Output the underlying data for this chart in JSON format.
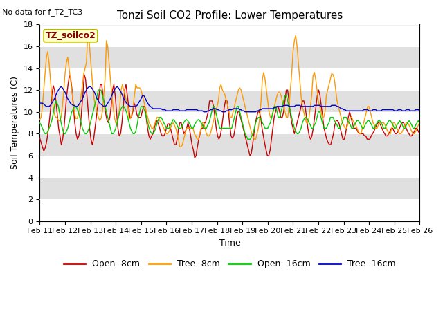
{
  "title": "Tonzi Soil CO2 Profile: Lower Temperatures",
  "top_left_note": "No data for f_T2_TC3",
  "box_label": "TZ_soilco2",
  "xlabel": "Time",
  "ylabel": "Soil Temperatures (C)",
  "ylim": [
    0,
    18
  ],
  "yticks": [
    0,
    2,
    4,
    6,
    8,
    10,
    12,
    14,
    16,
    18
  ],
  "n_days": 15,
  "date_labels": [
    "Feb 11",
    "Feb 12",
    "Feb 13",
    "Feb 14",
    "Feb 15",
    "Feb 16",
    "Feb 17",
    "Feb 18",
    "Feb 19",
    "Feb 20",
    "Feb 21",
    "Feb 22",
    "Feb 23",
    "Feb 24",
    "Feb 25",
    "Feb 26"
  ],
  "colors": {
    "open_8cm": "#cc0000",
    "tree_8cm": "#ff9900",
    "open_16cm": "#00cc00",
    "tree_16cm": "#0000cc"
  },
  "legend": [
    "Open -8cm",
    "Tree -8cm",
    "Open -16cm",
    "Tree -16cm"
  ],
  "band_colors": [
    "#ffffff",
    "#e0e0e0"
  ],
  "figsize": [
    6.4,
    4.8
  ],
  "dpi": 100,
  "open_8cm": [
    7.6,
    7.2,
    6.8,
    6.4,
    6.7,
    7.2,
    8.0,
    9.0,
    10.2,
    11.5,
    12.4,
    12.0,
    11.0,
    9.8,
    8.5,
    7.8,
    7.0,
    7.5,
    8.5,
    10.0,
    11.5,
    12.5,
    13.3,
    13.0,
    12.0,
    10.5,
    9.0,
    8.0,
    7.5,
    7.8,
    8.5,
    10.0,
    11.5,
    13.4,
    13.0,
    11.5,
    10.0,
    8.5,
    7.5,
    7.0,
    7.5,
    8.5,
    9.5,
    10.5,
    11.5,
    12.5,
    12.5,
    11.5,
    10.6,
    9.8,
    9.2,
    9.0,
    9.5,
    10.5,
    12.0,
    12.5,
    11.5,
    10.0,
    8.5,
    7.8,
    8.0,
    9.0,
    10.5,
    12.0,
    12.5,
    11.5,
    10.5,
    9.5,
    9.5,
    10.0,
    10.8,
    10.5,
    9.8,
    9.5,
    9.5,
    9.5,
    10.0,
    10.5,
    10.5,
    9.5,
    8.5,
    7.8,
    7.5,
    7.8,
    8.0,
    8.5,
    9.0,
    9.2,
    8.9,
    8.5,
    8.0,
    7.8,
    7.8,
    8.0,
    8.5,
    8.9,
    8.9,
    8.5,
    8.0,
    7.5,
    7.0,
    7.0,
    7.5,
    8.5,
    9.0,
    9.0,
    8.5,
    8.0,
    8.2,
    8.5,
    9.0,
    8.5,
    7.8,
    7.0,
    6.5,
    5.8,
    6.0,
    6.8,
    7.5,
    8.0,
    8.5,
    8.5,
    9.0,
    9.0,
    9.5,
    10.0,
    11.0,
    11.0,
    11.0,
    10.5,
    9.5,
    8.5,
    7.8,
    7.5,
    7.8,
    8.5,
    9.5,
    10.5,
    11.1,
    11.0,
    10.0,
    8.8,
    7.8,
    7.6,
    7.8,
    8.5,
    9.5,
    10.0,
    10.0,
    9.5,
    9.0,
    8.5,
    8.0,
    7.5,
    7.0,
    6.5,
    6.0,
    6.2,
    7.0,
    8.0,
    9.0,
    9.5,
    10.0,
    10.0,
    9.5,
    8.5,
    7.8,
    7.1,
    6.5,
    6.0,
    6.0,
    6.5,
    7.5,
    8.5,
    9.5,
    10.0,
    10.5,
    10.5,
    10.0,
    9.5,
    9.5,
    10.0,
    11.0,
    12.0,
    12.0,
    11.0,
    9.8,
    9.0,
    8.5,
    8.0,
    8.5,
    9.0,
    9.5,
    10.0,
    10.5,
    11.0,
    11.0,
    10.5,
    9.5,
    8.5,
    7.8,
    7.5,
    7.8,
    8.5,
    9.5,
    10.5,
    11.5,
    12.0,
    11.5,
    10.5,
    9.5,
    8.5,
    8.0,
    7.5,
    7.2,
    7.0,
    7.0,
    7.5,
    8.0,
    8.8,
    9.2,
    9.2,
    9.0,
    8.5,
    8.0,
    7.5,
    7.5,
    8.0,
    8.8,
    9.5,
    10.0,
    9.5,
    9.0,
    8.5,
    8.5,
    8.5,
    8.2,
    8.0,
    8.0,
    8.0,
    8.0,
    7.8,
    7.8,
    7.5,
    7.5,
    7.5,
    7.8,
    8.0,
    8.2,
    8.5,
    8.8,
    9.0,
    9.0,
    8.8,
    8.5,
    8.2,
    8.0,
    7.8,
    7.8,
    8.0,
    8.2,
    8.5,
    8.5,
    8.2,
    8.0,
    8.0,
    8.2,
    8.5,
    8.8,
    9.0,
    9.0,
    8.8,
    8.5,
    8.2,
    8.0,
    7.8,
    7.8,
    8.0,
    8.2,
    8.5,
    8.5,
    8.2,
    8.0
  ],
  "tree_8cm": [
    9.3,
    9.5,
    10.5,
    12.0,
    13.5,
    15.0,
    15.5,
    14.5,
    13.0,
    11.5,
    10.5,
    9.8,
    9.5,
    9.5,
    9.2,
    9.2,
    9.5,
    10.5,
    12.0,
    13.5,
    14.5,
    15.0,
    14.0,
    13.0,
    12.0,
    11.0,
    10.0,
    9.4,
    9.4,
    9.8,
    10.5,
    11.5,
    12.5,
    13.5,
    14.0,
    14.5,
    17.0,
    16.5,
    15.0,
    13.5,
    12.0,
    11.0,
    10.5,
    10.0,
    9.5,
    9.2,
    9.4,
    10.0,
    11.5,
    13.0,
    16.5,
    16.0,
    14.5,
    13.0,
    11.5,
    10.5,
    9.5,
    9.0,
    9.0,
    9.5,
    10.5,
    12.0,
    12.5,
    12.0,
    11.5,
    11.0,
    10.5,
    9.4,
    9.4,
    9.8,
    10.5,
    11.5,
    12.5,
    12.2,
    12.2,
    12.2,
    12.0,
    11.5,
    11.0,
    10.5,
    10.0,
    9.5,
    9.0,
    8.8,
    8.5,
    8.5,
    8.8,
    9.2,
    9.5,
    9.5,
    9.2,
    9.0,
    8.8,
    8.5,
    8.2,
    8.0,
    8.0,
    8.2,
    8.5,
    8.8,
    9.0,
    8.8,
    8.5,
    8.0,
    7.5,
    6.8,
    6.8,
    7.0,
    7.5,
    8.0,
    8.5,
    8.5,
    8.5,
    8.5,
    8.5,
    8.5,
    8.0,
    7.8,
    7.5,
    7.5,
    8.0,
    8.5,
    9.0,
    9.0,
    8.5,
    8.0,
    7.8,
    7.8,
    8.0,
    8.5,
    9.0,
    9.5,
    10.0,
    10.5,
    11.0,
    12.2,
    12.5,
    12.0,
    11.8,
    11.5,
    11.0,
    10.5,
    10.0,
    9.5,
    9.5,
    10.0,
    10.5,
    11.0,
    11.5,
    12.0,
    12.2,
    12.0,
    11.5,
    11.0,
    10.5,
    10.0,
    9.5,
    9.0,
    8.5,
    8.0,
    7.8,
    7.5,
    7.5,
    8.0,
    8.5,
    9.5,
    11.0,
    13.0,
    13.6,
    13.0,
    12.0,
    11.0,
    10.0,
    9.5,
    9.5,
    10.0,
    10.5,
    11.0,
    11.5,
    11.8,
    11.8,
    11.5,
    11.0,
    10.5,
    10.0,
    9.5,
    9.5,
    10.5,
    12.0,
    13.5,
    15.5,
    16.5,
    17.0,
    16.0,
    14.5,
    13.0,
    11.5,
    10.5,
    10.0,
    9.5,
    9.0,
    9.0,
    9.5,
    10.5,
    11.5,
    13.3,
    13.6,
    13.0,
    12.0,
    11.0,
    10.5,
    10.0,
    9.5,
    9.5,
    10.0,
    11.5,
    12.0,
    12.5,
    13.0,
    13.5,
    13.4,
    13.0,
    12.0,
    11.0,
    10.5,
    10.0,
    9.5,
    9.0,
    8.8,
    8.5,
    8.5,
    8.8,
    9.2,
    9.5,
    9.5,
    9.2,
    9.0,
    8.8,
    8.5,
    8.2,
    8.0,
    8.0,
    8.5,
    9.0,
    9.5,
    10.0,
    10.5,
    10.5,
    10.0,
    9.5,
    9.0,
    8.8,
    8.5,
    8.5,
    8.8,
    9.0,
    9.0,
    9.0,
    9.0,
    8.8,
    8.5,
    8.2,
    8.0,
    8.0,
    8.5,
    9.0,
    9.0,
    8.8,
    8.5,
    8.2,
    8.0,
    8.0,
    8.2,
    8.5,
    8.8,
    9.0,
    9.0,
    8.8,
    8.5,
    8.2,
    8.0,
    8.0,
    8.2,
    8.5,
    8.8,
    9.0
  ],
  "open_16cm": [
    9.0,
    8.8,
    8.5,
    8.2,
    8.0,
    8.0,
    8.2,
    8.5,
    8.8,
    9.2,
    9.8,
    10.5,
    11.0,
    10.8,
    10.5,
    9.8,
    9.0,
    8.5,
    8.0,
    8.0,
    8.2,
    8.5,
    9.0,
    9.5,
    10.0,
    10.2,
    10.5,
    10.5,
    10.3,
    10.0,
    9.5,
    9.0,
    8.5,
    8.2,
    8.0,
    8.0,
    8.2,
    8.5,
    9.0,
    9.5,
    10.0,
    10.5,
    11.0,
    11.5,
    12.0,
    12.0,
    12.0,
    11.5,
    11.0,
    10.5,
    10.0,
    9.5,
    9.0,
    8.5,
    8.0,
    8.0,
    8.2,
    8.5,
    9.0,
    9.5,
    10.0,
    10.3,
    10.5,
    10.5,
    10.3,
    10.0,
    9.5,
    9.0,
    8.5,
    8.2,
    8.0,
    8.0,
    8.2,
    8.8,
    9.5,
    10.0,
    10.5,
    10.5,
    10.3,
    10.0,
    9.5,
    9.0,
    8.5,
    8.2,
    8.0,
    8.0,
    8.2,
    8.5,
    9.0,
    9.3,
    9.5,
    9.5,
    9.3,
    9.0,
    8.8,
    8.5,
    8.5,
    8.5,
    8.8,
    9.0,
    9.3,
    9.2,
    9.0,
    8.8,
    8.5,
    8.5,
    8.5,
    8.8,
    9.0,
    9.2,
    9.3,
    9.2,
    9.0,
    8.8,
    8.5,
    8.5,
    8.8,
    9.0,
    9.2,
    9.3,
    9.2,
    9.0,
    8.8,
    8.5,
    8.5,
    8.5,
    8.8,
    9.0,
    9.5,
    10.0,
    10.5,
    10.5,
    10.0,
    9.5,
    9.0,
    8.5,
    8.5,
    8.5,
    8.5,
    8.5,
    8.5,
    8.5,
    8.5,
    8.5,
    8.5,
    9.0,
    9.5,
    10.0,
    10.5,
    10.5,
    10.0,
    9.5,
    9.0,
    8.5,
    8.0,
    7.8,
    7.5,
    7.5,
    7.5,
    7.8,
    8.0,
    8.5,
    9.0,
    9.3,
    9.5,
    9.5,
    9.3,
    9.0,
    8.8,
    8.5,
    8.5,
    8.5,
    8.8,
    9.0,
    9.5,
    10.0,
    10.5,
    10.5,
    10.0,
    9.5,
    9.5,
    10.0,
    10.5,
    11.0,
    11.5,
    11.5,
    11.0,
    10.5,
    10.0,
    9.5,
    9.0,
    8.5,
    8.2,
    8.0,
    8.0,
    8.2,
    8.5,
    9.0,
    9.3,
    9.5,
    9.5,
    9.3,
    9.0,
    8.8,
    8.5,
    8.5,
    8.8,
    9.0,
    9.5,
    10.0,
    10.0,
    9.5,
    9.0,
    8.5,
    8.5,
    8.5,
    8.8,
    9.0,
    9.5,
    9.5,
    9.5,
    9.2,
    9.0,
    8.8,
    8.5,
    8.5,
    8.8,
    9.0,
    9.5,
    9.5,
    9.5,
    9.2,
    9.0,
    8.8,
    8.5,
    8.5,
    8.8,
    9.0,
    9.2,
    9.2,
    9.0,
    8.8,
    8.5,
    8.5,
    8.8,
    9.0,
    9.2,
    9.2,
    9.0,
    8.8,
    8.5,
    8.5,
    8.8,
    9.0,
    9.2,
    9.2,
    9.0,
    8.8,
    8.5,
    8.5,
    8.8,
    9.0,
    9.2,
    9.2,
    9.0,
    8.8,
    8.5,
    8.5,
    8.8,
    9.0,
    9.2,
    9.0,
    8.8,
    8.5,
    8.5,
    8.8,
    9.0,
    9.2,
    9.0,
    8.8,
    8.5,
    8.5,
    8.8,
    9.0,
    9.2,
    9.0
  ],
  "tree_16cm": [
    10.8,
    10.8,
    10.8,
    10.7,
    10.6,
    10.5,
    10.5,
    10.5,
    10.6,
    10.8,
    11.0,
    11.2,
    11.5,
    11.8,
    12.0,
    12.2,
    12.3,
    12.2,
    12.0,
    11.8,
    11.5,
    11.2,
    11.0,
    10.8,
    10.7,
    10.6,
    10.6,
    10.5,
    10.5,
    10.6,
    10.8,
    11.0,
    11.2,
    11.5,
    11.8,
    12.0,
    12.2,
    12.3,
    12.3,
    12.2,
    12.0,
    11.8,
    11.5,
    11.2,
    11.0,
    10.8,
    10.7,
    10.6,
    10.5,
    10.5,
    10.6,
    10.8,
    11.0,
    11.2,
    11.5,
    11.8,
    12.0,
    12.2,
    12.3,
    12.2,
    12.0,
    11.8,
    11.5,
    11.2,
    11.0,
    10.8,
    10.7,
    10.6,
    10.5,
    10.5,
    10.5,
    10.5,
    10.5,
    10.6,
    10.8,
    11.0,
    11.2,
    11.5,
    11.5,
    11.3,
    11.0,
    10.8,
    10.6,
    10.5,
    10.4,
    10.3,
    10.3,
    10.3,
    10.3,
    10.3,
    10.3,
    10.3,
    10.2,
    10.2,
    10.2,
    10.1,
    10.1,
    10.1,
    10.1,
    10.1,
    10.2,
    10.2,
    10.2,
    10.2,
    10.2,
    10.1,
    10.1,
    10.1,
    10.1,
    10.1,
    10.2,
    10.2,
    10.2,
    10.2,
    10.2,
    10.2,
    10.2,
    10.2,
    10.2,
    10.1,
    10.1,
    10.1,
    10.1,
    10.0,
    10.0,
    10.0,
    10.1,
    10.1,
    10.2,
    10.2,
    10.3,
    10.3,
    10.3,
    10.2,
    10.2,
    10.1,
    10.1,
    10.0,
    10.0,
    10.0,
    10.1,
    10.1,
    10.2,
    10.2,
    10.2,
    10.3,
    10.3,
    10.3,
    10.3,
    10.3,
    10.2,
    10.2,
    10.1,
    10.1,
    10.0,
    10.0,
    10.0,
    10.0,
    10.0,
    10.0,
    10.0,
    10.0,
    10.0,
    10.1,
    10.1,
    10.2,
    10.2,
    10.3,
    10.3,
    10.3,
    10.3,
    10.3,
    10.3,
    10.3,
    10.3,
    10.3,
    10.4,
    10.4,
    10.5,
    10.5,
    10.5,
    10.5,
    10.5,
    10.6,
    10.6,
    10.6,
    10.6,
    10.5,
    10.5,
    10.5,
    10.5,
    10.5,
    10.6,
    10.6,
    10.6,
    10.6,
    10.5,
    10.5,
    10.5,
    10.5,
    10.5,
    10.5,
    10.5,
    10.5,
    10.5,
    10.5,
    10.6,
    10.6,
    10.6,
    10.6,
    10.6,
    10.5,
    10.5,
    10.5,
    10.5,
    10.5,
    10.5,
    10.5,
    10.5,
    10.6,
    10.6,
    10.6,
    10.6,
    10.5,
    10.5,
    10.4,
    10.3,
    10.3,
    10.2,
    10.2,
    10.1,
    10.1,
    10.1,
    10.1,
    10.1,
    10.1,
    10.1,
    10.1,
    10.1,
    10.1,
    10.1,
    10.1,
    10.1,
    10.2,
    10.2,
    10.2,
    10.2,
    10.1,
    10.1,
    10.1,
    10.2,
    10.2,
    10.2,
    10.1,
    10.1,
    10.1,
    10.1,
    10.2,
    10.2,
    10.2,
    10.2,
    10.2,
    10.2,
    10.2,
    10.2,
    10.2,
    10.1,
    10.1,
    10.1,
    10.2,
    10.2,
    10.2,
    10.1,
    10.1,
    10.1,
    10.2,
    10.2,
    10.2,
    10.1,
    10.1,
    10.1,
    10.1,
    10.2,
    10.2,
    10.2,
    10.1
  ]
}
